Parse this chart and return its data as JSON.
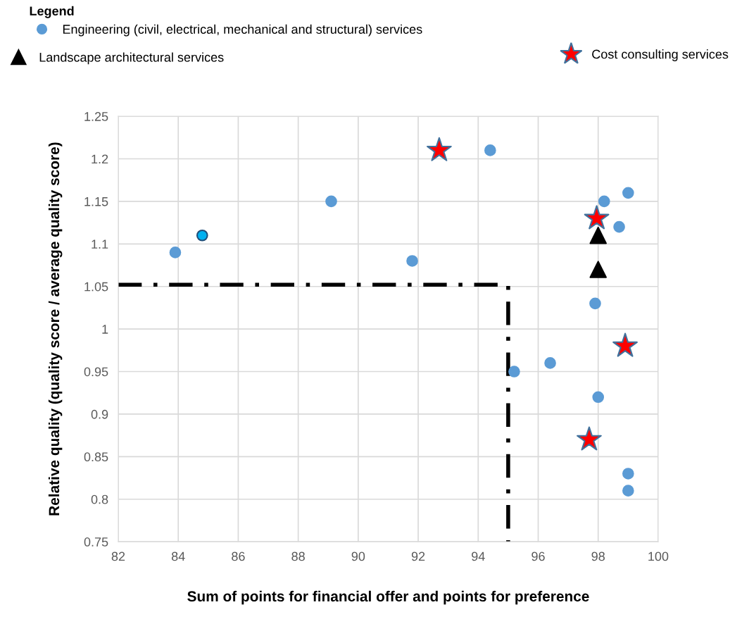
{
  "chart_data": {
    "type": "scatter",
    "legend_title": "Legend",
    "xlabel": "Sum of points for financial offer and points for preference",
    "ylabel": "Relative quality (quality score / average quality score)",
    "xlim": [
      82,
      100
    ],
    "xticks": [
      82,
      84,
      86,
      88,
      90,
      92,
      94,
      96,
      98,
      100
    ],
    "ylim": [
      0.75,
      1.25
    ],
    "yticks": [
      0.75,
      0.8,
      0.85,
      0.9,
      0.95,
      1,
      1.05,
      1.1,
      1.15,
      1.2,
      1.25
    ],
    "grid": true,
    "legend": "top",
    "series": [
      {
        "name": "Engineering (civil, electrical, mechanical and structural) services",
        "color": "#5b9bd5",
        "marker": "circle",
        "colors": [
          "#5b9bd5",
          "#00b0f0",
          "#5b9bd5",
          "#5b9bd5",
          "#5b9bd5",
          "#5b9bd5",
          "#5b9bd5",
          "#5b9bd5",
          "#5b9bd5",
          "#5b9bd5",
          "#5b9bd5",
          "#5b9bd5",
          "#5b9bd5",
          "#5b9bd5"
        ],
        "x": [
          83.9,
          84.8,
          89.1,
          91.8,
          94.4,
          95.2,
          96.4,
          97.9,
          98.0,
          98.2,
          98.7,
          99.0,
          99.0,
          99.0
        ],
        "values": [
          1.09,
          1.11,
          1.15,
          1.08,
          1.21,
          0.95,
          0.96,
          1.03,
          0.92,
          1.15,
          1.12,
          1.16,
          0.83,
          0.81
        ]
      },
      {
        "name": "Landscape architectural services",
        "color": "#000000",
        "marker": "triangle",
        "x": [
          98.0,
          98.0
        ],
        "values": [
          1.11,
          1.07
        ]
      },
      {
        "name": "Cost consulting services",
        "color": "#ff0000",
        "marker": "star",
        "x": [
          92.7,
          97.95,
          98.9,
          97.7
        ],
        "values": [
          1.21,
          1.13,
          0.98,
          0.87
        ]
      },
      {
        "type": "line",
        "color": "#000000",
        "line_style": "dashdot",
        "marker": "none",
        "x": [
          82,
          95,
          95
        ],
        "values": [
          1.052,
          1.052,
          0.75
        ]
      }
    ]
  }
}
